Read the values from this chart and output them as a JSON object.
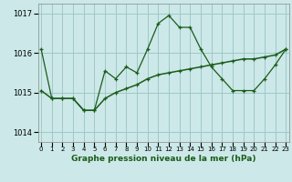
{
  "title": "Graphe pression niveau de la mer (hPa)",
  "background_color": "#cce8e8",
  "grid_color": "#a0c8c8",
  "line_color": "#1a5c1a",
  "x_labels": [
    "0",
    "1",
    "2",
    "3",
    "4",
    "5",
    "6",
    "7",
    "8",
    "9",
    "10",
    "11",
    "12",
    "13",
    "14",
    "15",
    "16",
    "17",
    "18",
    "19",
    "20",
    "21",
    "22",
    "23"
  ],
  "ylim": [
    1013.75,
    1017.25
  ],
  "yticks": [
    1014,
    1015,
    1016,
    1017
  ],
  "line1_y": [
    1016.1,
    1014.85,
    1014.85,
    1014.85,
    1014.55,
    1014.55,
    1015.55,
    1015.35,
    1015.65,
    1015.5,
    1016.1,
    1016.75,
    1016.95,
    1016.65,
    1016.65,
    1016.1,
    1015.65,
    1015.35,
    1015.05,
    1015.05,
    1015.05,
    1015.35,
    1015.7,
    1016.1
  ],
  "line2_y": [
    1015.05,
    1014.85,
    1014.85,
    1014.85,
    1014.55,
    1014.55,
    1014.85,
    1015.0,
    1015.1,
    1015.2,
    1015.35,
    1015.45,
    1015.5,
    1015.55,
    1015.6,
    1015.65,
    1015.7,
    1015.75,
    1015.8,
    1015.85,
    1015.85,
    1015.9,
    1015.95,
    1016.1
  ]
}
